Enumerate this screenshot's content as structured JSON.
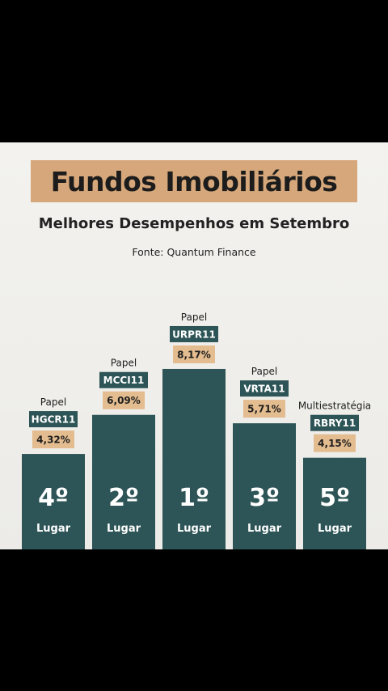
{
  "title": "Fundos Imobiliários",
  "subtitle": "Melhores Desempenhos em Setembro",
  "source": "Fonte: Quantum Finance",
  "colors": {
    "background": "#000000",
    "card": "#efeeea",
    "title_box": "#d6a77a",
    "bar": "#2d5456",
    "ticker_bg": "#2d5456",
    "value_bg": "#e3bc8f"
  },
  "chart_data": {
    "type": "bar",
    "categories": [
      "HGCR11",
      "MCCI11",
      "URPR11",
      "VRTA11",
      "RBRY11"
    ],
    "values": [
      4.32,
      6.09,
      8.17,
      5.71,
      4.15
    ],
    "value_labels": [
      "4,32%",
      "6,09%",
      "8,17%",
      "5,71%",
      "4,15%"
    ],
    "fund_types": [
      "Papel",
      "Papel",
      "Papel",
      "Papel",
      "Multiestratégia"
    ],
    "ranks": [
      "4º",
      "2º",
      "1º",
      "3º",
      "5º"
    ],
    "place_label": "Lugar",
    "title": "Fundos Imobiliários",
    "subtitle": "Melhores Desempenhos em Setembro",
    "xlabel": "",
    "ylabel": ""
  }
}
